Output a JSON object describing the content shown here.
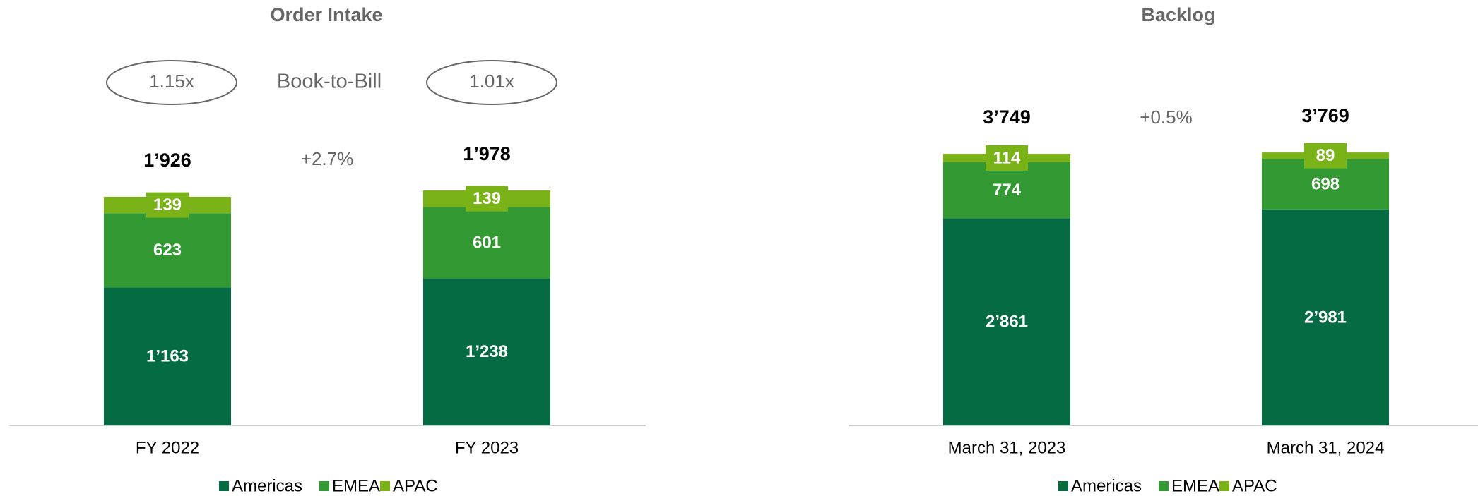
{
  "chart_data": [
    {
      "type": "stacked_bar",
      "title": "Order Intake",
      "categories": [
        "FY 2022",
        "FY 2023"
      ],
      "series": [
        {
          "name": "Americas",
          "color": "#056b42",
          "values": [
            1163,
            1238
          ],
          "value_labels": [
            "1’163",
            "1’238"
          ]
        },
        {
          "name": "EMEA",
          "color": "#339933",
          "values": [
            623,
            601
          ]
        },
        {
          "name": "APAC",
          "color": "#7ab317",
          "values": [
            139,
            139
          ]
        }
      ],
      "totals": [
        1926,
        1978
      ],
      "total_labels": [
        "1’926",
        "1’978"
      ],
      "growth": "+2.7%",
      "book_to_bill_label": "Book-to-Bill",
      "book_to_bill": [
        "1.15x",
        "1.01x"
      ],
      "legend": "bottom"
    },
    {
      "type": "stacked_bar",
      "title": "Backlog",
      "categories": [
        "March 31, 2023",
        "March 31, 2024"
      ],
      "series": [
        {
          "name": "Americas",
          "color": "#056b42",
          "values": [
            2861,
            2981
          ],
          "value_labels": [
            "2’861",
            "2’981"
          ]
        },
        {
          "name": "EMEA",
          "color": "#339933",
          "values": [
            774,
            698
          ]
        },
        {
          "name": "APAC",
          "color": "#7ab317",
          "values": [
            114,
            89
          ]
        }
      ],
      "totals": [
        3749,
        3769
      ],
      "total_labels": [
        "3’749",
        "3’769"
      ],
      "growth": "+0.5%",
      "legend": "bottom"
    }
  ]
}
